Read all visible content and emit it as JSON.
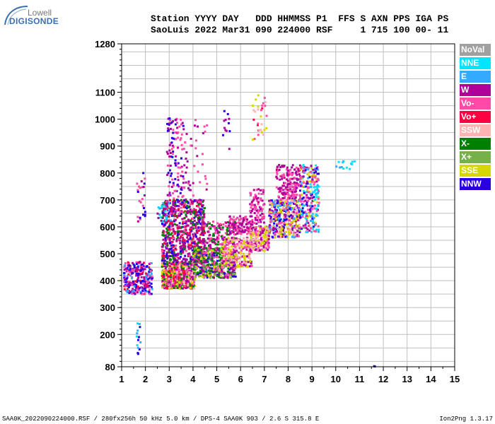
{
  "logo": {
    "top": "Lowell",
    "bottom": "DIGISONDE"
  },
  "header": {
    "line1": "Station YYYY DAY   DDD HHMMSS P1  FFS S AXN PPS IGA PS",
    "line2": "SaoLuis 2022 Mar31 090 224000 RSF     1 715 100 00- 11"
  },
  "footer": {
    "left": "SAA0K_2022090224000.RSF / 280fx256h 50 kHz 5.0 km / DPS-4 SAA0K 903 / 2.6 S 315.8 E",
    "right": "Ion2Png 1.3.17"
  },
  "legend": [
    {
      "label": "NoVal",
      "color": "#a0a0a0"
    },
    {
      "label": "NNE",
      "color": "#00e5ff"
    },
    {
      "label": "E",
      "color": "#33a9ff"
    },
    {
      "label": "W",
      "color": "#b0009a"
    },
    {
      "label": "Vo-",
      "color": "#ff4aa8"
    },
    {
      "label": "Vo+",
      "color": "#ff0040"
    },
    {
      "label": "SSW",
      "color": "#ffb3b3"
    },
    {
      "label": "X-",
      "color": "#008000"
    },
    {
      "label": "X+",
      "color": "#76b04a"
    },
    {
      "label": "SSE",
      "color": "#d6d600"
    },
    {
      "label": "NNW",
      "color": "#2a00e0"
    }
  ],
  "chart_data": {
    "type": "scatter",
    "title": "",
    "xlabel": "",
    "ylabel": "",
    "xlim": [
      1,
      15
    ],
    "ylim": [
      80,
      1280
    ],
    "x_ticks": [
      "1",
      "2",
      "3",
      "4",
      "5",
      "6",
      "7",
      "8",
      "9",
      "10",
      "11",
      "12",
      "13",
      "14",
      "15"
    ],
    "y_ticks": [
      {
        "value": 80,
        "label": "80"
      },
      {
        "value": 200,
        "label": "200"
      },
      {
        "value": 300,
        "label": "300"
      },
      {
        "value": 400,
        "label": "400"
      },
      {
        "value": 500,
        "label": "500"
      },
      {
        "value": 600,
        "label": "600"
      },
      {
        "value": 700,
        "label": "700"
      },
      {
        "value": 800,
        "label": "800"
      },
      {
        "value": 900,
        "label": "900"
      },
      {
        "value": 1000,
        "label": "1000"
      },
      {
        "value": 1100,
        "label": "1100"
      },
      {
        "value": 1280,
        "label": "1280"
      }
    ],
    "grid": true,
    "clusters": [
      {
        "x": [
          1.1,
          2.3
        ],
        "y": [
          350,
          470
        ],
        "n": 260,
        "colors": [
          "#2a00e0",
          "#2a00e0",
          "#ff4aa8",
          "#b0009a",
          "#33a9ff",
          "#ff0040"
        ]
      },
      {
        "x": [
          1.6,
          2.0
        ],
        "y": [
          620,
          800
        ],
        "n": 25,
        "colors": [
          "#b0009a",
          "#2a00e0",
          "#ff4aa8"
        ]
      },
      {
        "x": [
          1.6,
          1.8
        ],
        "y": [
          120,
          250
        ],
        "n": 14,
        "colors": [
          "#33a9ff",
          "#2a00e0",
          "#00e5ff"
        ]
      },
      {
        "x": [
          2.7,
          4.1
        ],
        "y": [
          370,
          470
        ],
        "n": 720,
        "colors": [
          "#ff4aa8",
          "#b0009a",
          "#ff0040",
          "#008000",
          "#ffb3b3",
          "#d6d600"
        ]
      },
      {
        "x": [
          2.7,
          4.5
        ],
        "y": [
          460,
          700
        ],
        "n": 760,
        "colors": [
          "#b0009a",
          "#ff4aa8",
          "#b0009a",
          "#ff0040",
          "#2a00e0",
          "#008000"
        ]
      },
      {
        "x": [
          2.9,
          3.6
        ],
        "y": [
          700,
          1010
        ],
        "n": 110,
        "colors": [
          "#b0009a",
          "#ff4aa8",
          "#2a00e0"
        ]
      },
      {
        "x": [
          3.6,
          4.6
        ],
        "y": [
          700,
          1000
        ],
        "n": 45,
        "colors": [
          "#b0009a",
          "#ff4aa8"
        ]
      },
      {
        "x": [
          2.5,
          3.1
        ],
        "y": [
          620,
          690
        ],
        "n": 30,
        "colors": [
          "#33a9ff",
          "#00e5ff",
          "#b0009a"
        ]
      },
      {
        "x": [
          4.0,
          5.8
        ],
        "y": [
          410,
          520
        ],
        "n": 520,
        "colors": [
          "#008000",
          "#b0009a",
          "#d6d600",
          "#ff4aa8",
          "#2a00e0",
          "#76b04a"
        ]
      },
      {
        "x": [
          4.4,
          5.8
        ],
        "y": [
          520,
          620
        ],
        "n": 160,
        "colors": [
          "#b0009a",
          "#ff4aa8",
          "#008000"
        ]
      },
      {
        "x": [
          5.2,
          6.5
        ],
        "y": [
          450,
          560
        ],
        "n": 260,
        "colors": [
          "#d6d600",
          "#ffb3b3",
          "#ff4aa8",
          "#b0009a"
        ]
      },
      {
        "x": [
          5.5,
          6.5
        ],
        "y": [
          570,
          640
        ],
        "n": 120,
        "colors": [
          "#b0009a",
          "#ff4aa8"
        ]
      },
      {
        "x": [
          5.2,
          5.6
        ],
        "y": [
          880,
          1030
        ],
        "n": 12,
        "colors": [
          "#b0009a",
          "#2a00e0"
        ]
      },
      {
        "x": [
          6.4,
          7.2
        ],
        "y": [
          510,
          600
        ],
        "n": 200,
        "colors": [
          "#ffb3b3",
          "#d6d600",
          "#ff4aa8",
          "#b0009a"
        ]
      },
      {
        "x": [
          6.4,
          7.0
        ],
        "y": [
          600,
          740
        ],
        "n": 90,
        "colors": [
          "#b0009a",
          "#ff4aa8"
        ]
      },
      {
        "x": [
          6.5,
          7.1
        ],
        "y": [
          920,
          1090
        ],
        "n": 30,
        "colors": [
          "#ff4aa8",
          "#ff0040",
          "#d6d600",
          "#ffb3b3"
        ]
      },
      {
        "x": [
          7.2,
          8.5
        ],
        "y": [
          560,
          700
        ],
        "n": 420,
        "colors": [
          "#d6d600",
          "#ff4aa8",
          "#b0009a",
          "#ffb3b3",
          "#33a9ff",
          "#2a00e0"
        ]
      },
      {
        "x": [
          7.5,
          8.5
        ],
        "y": [
          700,
          830
        ],
        "n": 170,
        "colors": [
          "#b0009a",
          "#ff4aa8"
        ]
      },
      {
        "x": [
          8.5,
          9.3
        ],
        "y": [
          580,
          830
        ],
        "n": 260,
        "colors": [
          "#b0009a",
          "#ff4aa8",
          "#33a9ff",
          "#00e5ff",
          "#d6d600",
          "#2a00e0"
        ]
      },
      {
        "x": [
          10.0,
          10.8
        ],
        "y": [
          810,
          850
        ],
        "n": 14,
        "colors": [
          "#00e5ff",
          "#33a9ff"
        ]
      },
      {
        "x": [
          11.6,
          11.7
        ],
        "y": [
          80,
          82
        ],
        "n": 2,
        "colors": [
          "#2a00e0"
        ]
      }
    ]
  }
}
